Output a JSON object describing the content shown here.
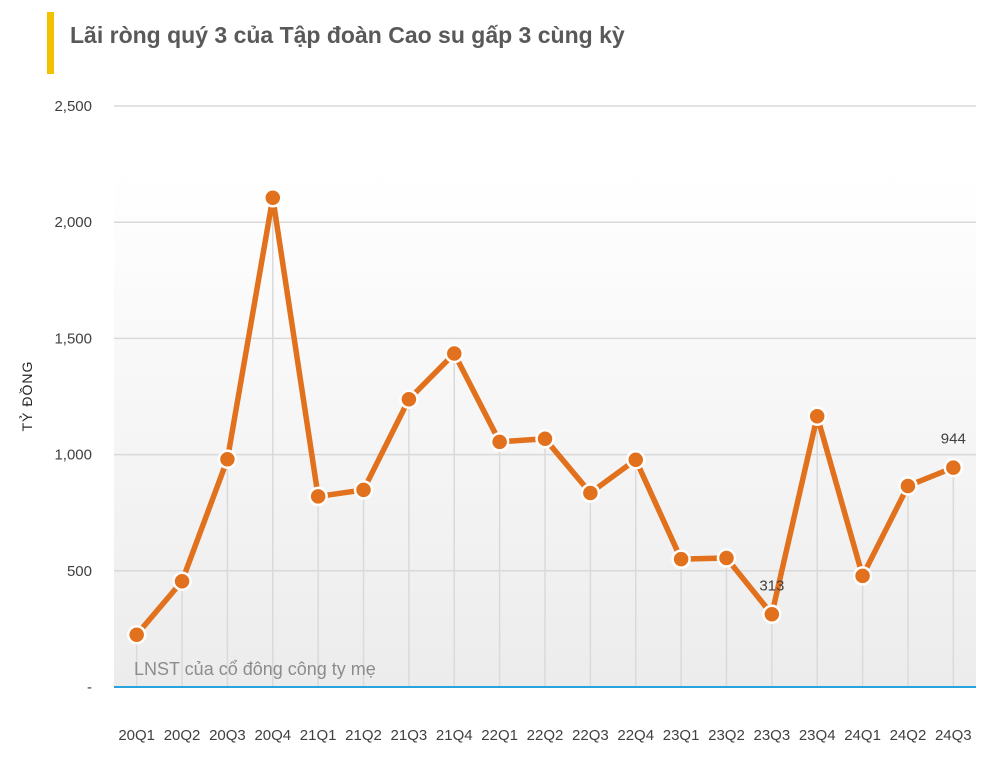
{
  "title": "Lãi ròng quý 3 của Tập đoàn Cao su gấp 3 cùng kỳ",
  "colors": {
    "accent_bar": "#f2c200",
    "line": "#e2711d",
    "baseline": "#29a3dd",
    "grid": "#d9d9d9"
  },
  "chart_data": {
    "type": "line",
    "ylabel": "TỶ ĐỒNG",
    "ylim": [
      0,
      2500
    ],
    "ytick_values": [
      0,
      500,
      1000,
      1500,
      2000,
      2500
    ],
    "ytick_labels": [
      "-",
      "500",
      "1,000",
      "1,500",
      "2,000",
      "2,500"
    ],
    "categories": [
      "20Q1",
      "20Q2",
      "20Q3",
      "20Q4",
      "21Q1",
      "21Q2",
      "21Q3",
      "21Q4",
      "22Q1",
      "22Q2",
      "22Q3",
      "22Q4",
      "23Q1",
      "23Q2",
      "23Q3",
      "23Q4",
      "24Q1",
      "24Q2",
      "24Q3"
    ],
    "series": [
      {
        "values": [
          225,
          455,
          980,
          2105,
          820,
          848,
          1238,
          1435,
          1055,
          1068,
          835,
          978,
          550,
          555,
          313,
          1165,
          478,
          865,
          944
        ]
      }
    ],
    "data_labels": [
      {
        "category": "23Q3",
        "text": "313"
      },
      {
        "category": "24Q3",
        "text": "944"
      }
    ],
    "annotation": "LNST của cổ đông công ty mẹ",
    "grid": true
  }
}
